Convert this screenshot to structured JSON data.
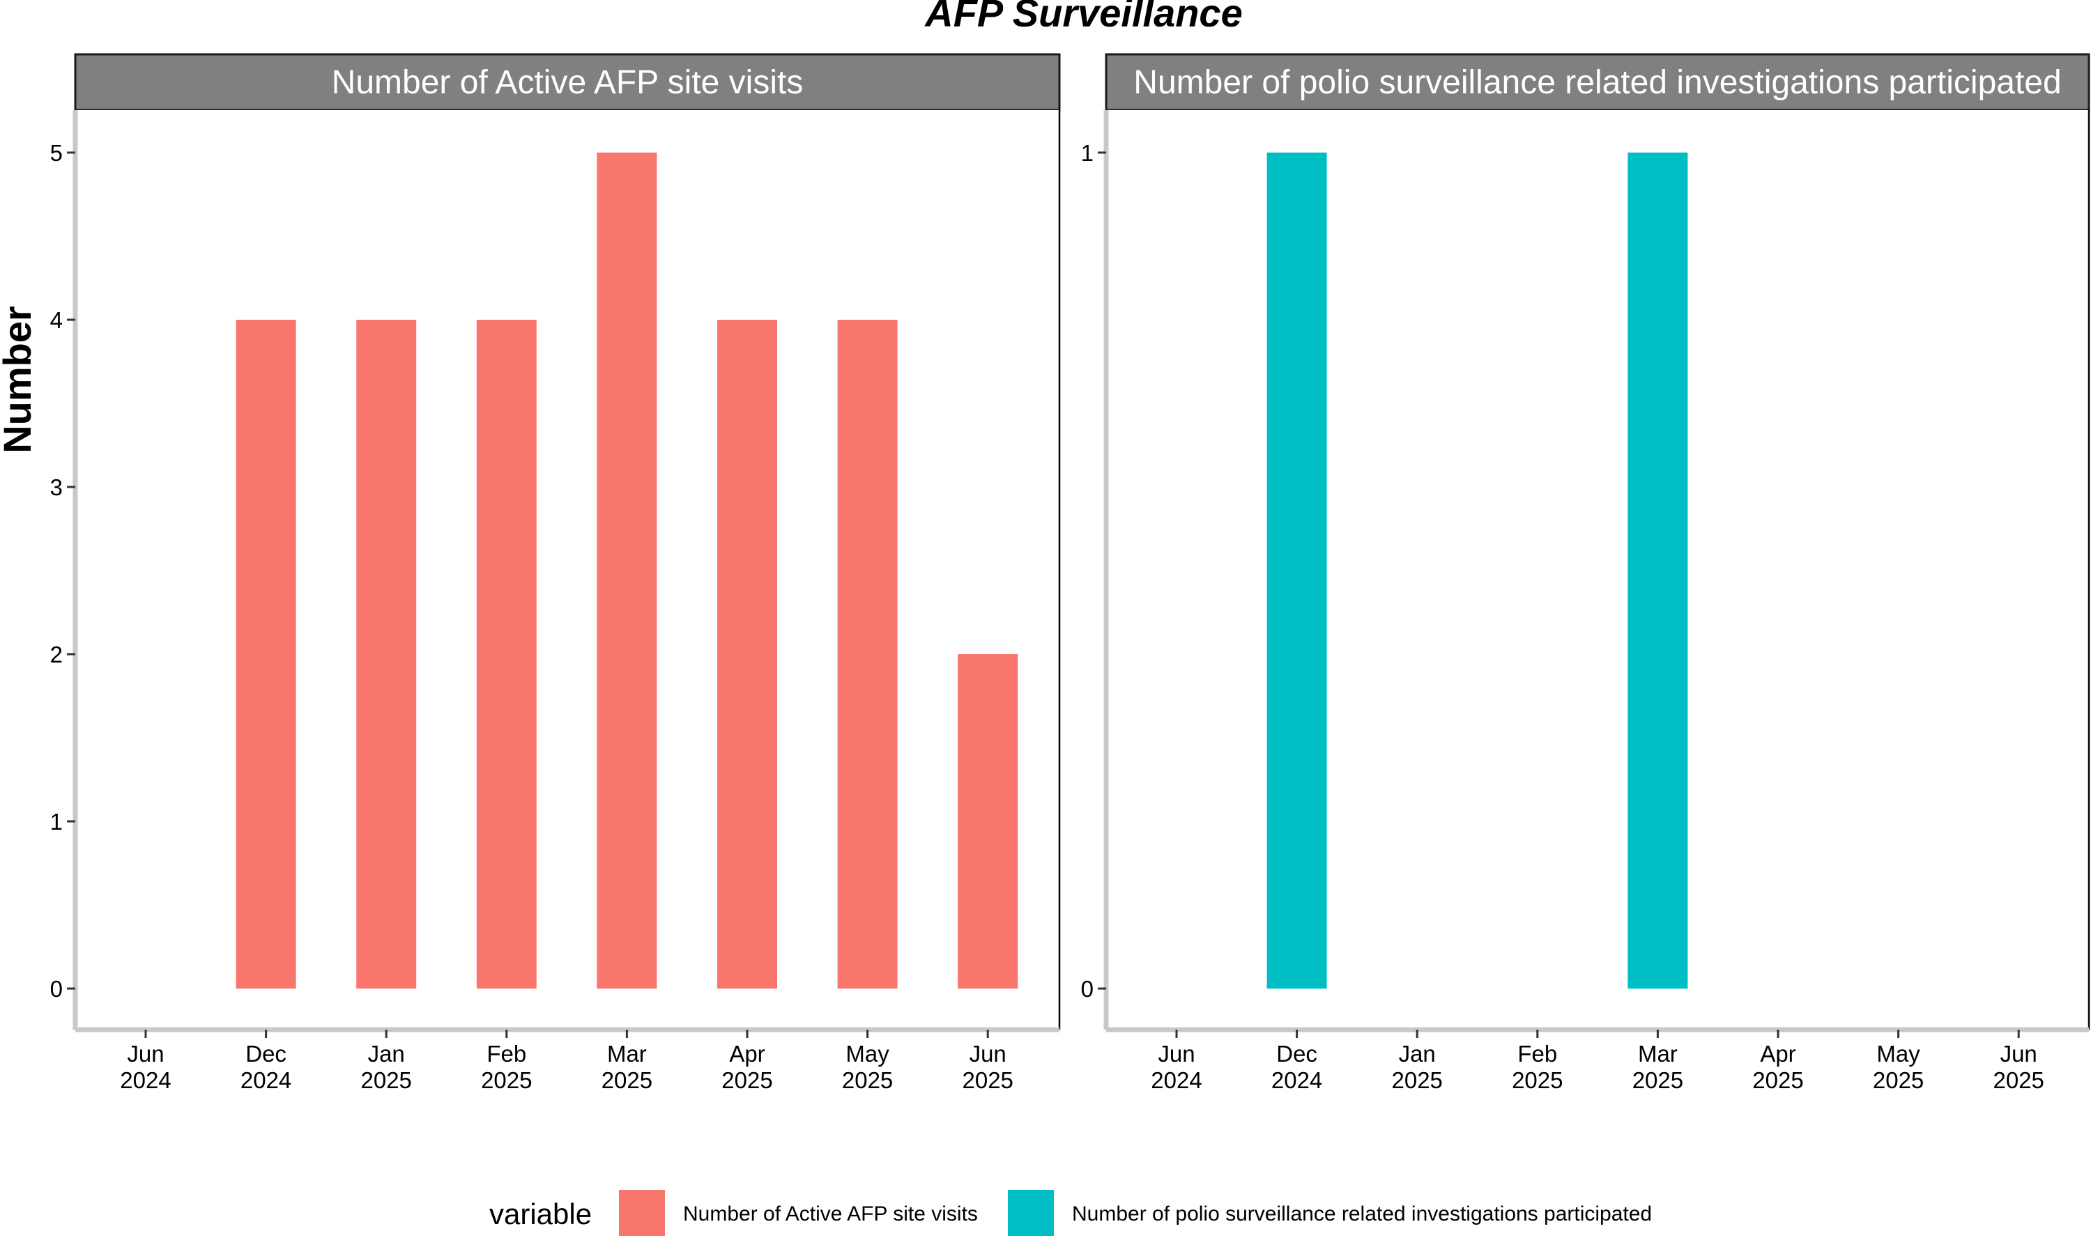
{
  "title": "AFP Surveillance",
  "ylabel": "Number",
  "legend": {
    "title": "variable",
    "items": [
      {
        "label": "Number of Active AFP site visits",
        "color": "#F8766D"
      },
      {
        "label": "Number of polio surveillance related investigations participated",
        "color": "#00BFC4"
      }
    ]
  },
  "chart_data": [
    {
      "type": "bar",
      "title": "Number of Active AFP site visits",
      "color": "#F8766D",
      "x_ticks": [
        [
          "Jun",
          "2024"
        ],
        [
          "Dec",
          "2024"
        ],
        [
          "Jan",
          "2025"
        ],
        [
          "Feb",
          "2025"
        ],
        [
          "Mar",
          "2025"
        ],
        [
          "Apr",
          "2025"
        ],
        [
          "May",
          "2025"
        ],
        [
          "Jun",
          "2025"
        ]
      ],
      "bars": [
        {
          "x": "Dec 2024",
          "value": 4
        },
        {
          "x": "Jan 2025",
          "value": 4
        },
        {
          "x": "Feb 2025",
          "value": 4
        },
        {
          "x": "Mar 2025",
          "value": 5
        },
        {
          "x": "Apr 2025",
          "value": 4
        },
        {
          "x": "May 2025",
          "value": 4
        },
        {
          "x": "Jun 2025",
          "value": 2
        }
      ],
      "y_ticks": [
        0,
        1,
        2,
        3,
        4,
        5
      ],
      "ylim": [
        0,
        5
      ]
    },
    {
      "type": "bar",
      "title": "Number of polio surveillance related investigations participated",
      "color": "#00BFC4",
      "x_ticks": [
        [
          "Jun",
          "2024"
        ],
        [
          "Dec",
          "2024"
        ],
        [
          "Jan",
          "2025"
        ],
        [
          "Feb",
          "2025"
        ],
        [
          "Mar",
          "2025"
        ],
        [
          "Apr",
          "2025"
        ],
        [
          "May",
          "2025"
        ],
        [
          "Jun",
          "2025"
        ]
      ],
      "bars": [
        {
          "x": "Dec 2024",
          "value": 1
        },
        {
          "x": "Mar 2025",
          "value": 1
        }
      ],
      "y_ticks": [
        0,
        1
      ],
      "ylim": [
        0,
        1
      ]
    }
  ]
}
